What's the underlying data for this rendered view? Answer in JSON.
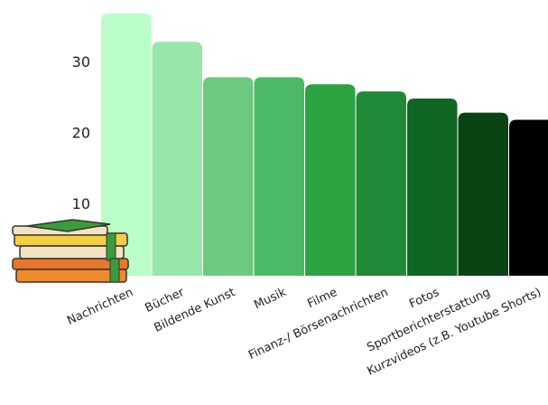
{
  "chart_data": {
    "type": "bar",
    "categories": [
      "Nachrichten",
      "Bücher",
      "Bildende Kunst",
      "Musik",
      "Filme",
      "Finanz-/ Börsenachrichten",
      "Fotos",
      "Sportberichterstattung",
      "Kurzvideos (z.B. Youtube Shorts)"
    ],
    "values": [
      37,
      33,
      28,
      28,
      27,
      26,
      25,
      23,
      22
    ],
    "colors": [
      "#bbfdc9",
      "#98e6a9",
      "#6cc97f",
      "#4cb964",
      "#2ca241",
      "#1e8a35",
      "#0f6623",
      "#0a4314",
      "#000000"
    ],
    "ylim": [
      0,
      38
    ],
    "yticks": [
      10,
      20,
      30
    ]
  }
}
